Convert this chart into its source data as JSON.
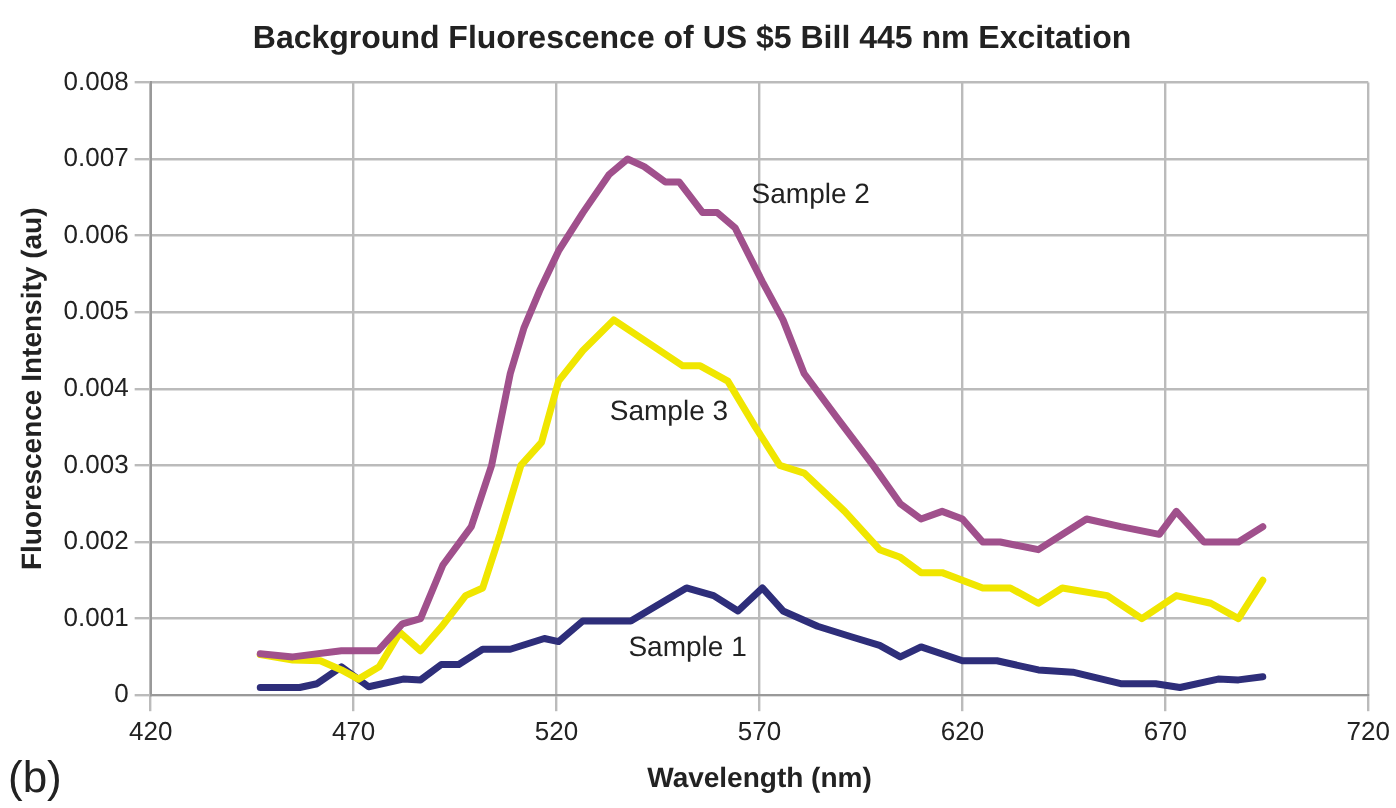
{
  "chart_data": {
    "type": "line",
    "title": "Background Fluorescence of US $5 Bill 445 nm Excitation",
    "xlabel": "Wavelength (nm)",
    "ylabel": "Fluorescence Intensity (au)",
    "annotations": [
      "(b)"
    ],
    "xlim": [
      420,
      720
    ],
    "xticks": [
      420,
      470,
      520,
      570,
      620,
      670,
      720
    ],
    "ylim": [
      0,
      0.008
    ],
    "yticks": [
      0,
      0.001,
      0.002,
      0.003,
      0.004,
      0.005,
      0.006,
      0.007,
      0.008
    ],
    "grid": true,
    "legend": false,
    "marker": "none",
    "line_style": "solid",
    "series": [
      {
        "name": "Sample 2",
        "color": "#a0508c",
        "x": [
          447,
          455,
          467,
          476,
          482,
          486.5,
          492,
          499,
          504,
          508.6,
          512,
          516,
          520.5,
          526.5,
          533,
          537.5,
          541.6,
          546.8,
          550.2,
          556,
          559.6,
          564,
          570.7,
          575.8,
          581,
          589.4,
          598,
          604.7,
          609.8,
          615,
          620,
          625,
          629.3,
          638.7,
          650.6,
          659,
          668.5,
          672.7,
          679.5,
          688,
          694
        ],
        "values": [
          0.00054,
          0.0005,
          0.00058,
          0.00058,
          0.00093,
          0.001,
          0.0017,
          0.0022,
          0.003,
          0.0042,
          0.0048,
          0.0053,
          0.0058,
          0.0063,
          0.0068,
          0.007,
          0.0069,
          0.0067,
          0.0067,
          0.0063,
          0.0063,
          0.0061,
          0.0054,
          0.0049,
          0.0042,
          0.0036,
          0.003,
          0.0025,
          0.0023,
          0.0024,
          0.0023,
          0.002,
          0.002,
          0.0019,
          0.0023,
          0.0022,
          0.0021,
          0.0024,
          0.002,
          0.002,
          0.0022
        ]
      },
      {
        "name": "Sample 3",
        "color": "#f0e600",
        "x": [
          447,
          455,
          461.8,
          467,
          471.2,
          476.3,
          481.4,
          486.5,
          491.6,
          497.6,
          501.8,
          506.1,
          511.2,
          516.3,
          520.5,
          526.5,
          534.1,
          542.6,
          551.1,
          555.4,
          562.2,
          569,
          575,
          581,
          591,
          599.6,
          604.7,
          609.8,
          615,
          625,
          631.8,
          638.7,
          644.6,
          655.7,
          664.2,
          672.7,
          681.2,
          688,
          694
        ],
        "values": [
          0.00053,
          0.00046,
          0.00045,
          0.00033,
          0.00021,
          0.00037,
          0.00082,
          0.00058,
          0.00089,
          0.0013,
          0.0014,
          0.0021,
          0.003,
          0.0033,
          0.0041,
          0.0045,
          0.0049,
          0.0046,
          0.0043,
          0.0043,
          0.0041,
          0.0035,
          0.003,
          0.0029,
          0.0024,
          0.0019,
          0.0018,
          0.0016,
          0.0016,
          0.0014,
          0.0014,
          0.0012,
          0.0014,
          0.0013,
          0.001,
          0.0013,
          0.0012,
          0.001,
          0.0015
        ]
      },
      {
        "name": "Sample 1",
        "color": "#2e2e7a",
        "x": [
          447,
          456.7,
          461,
          467,
          473.7,
          482.2,
          486.5,
          491.6,
          495.9,
          501.8,
          508.6,
          517,
          520.5,
          526.5,
          538.3,
          552,
          558.7,
          564.7,
          570.7,
          575.8,
          584.3,
          592.8,
          599.6,
          604.7,
          609.8,
          620,
          628.5,
          638.7,
          647.2,
          659,
          667.6,
          673.6,
          683,
          688,
          694
        ],
        "values": [
          0.0001,
          0.0001,
          0.00015,
          0.00037,
          0.00011,
          0.00021,
          0.0002,
          0.0004,
          0.0004,
          0.0006,
          0.0006,
          0.00074,
          0.0007,
          0.00097,
          0.00097,
          0.0014,
          0.0013,
          0.0011,
          0.0014,
          0.0011,
          0.0009,
          0.00076,
          0.00065,
          0.0005,
          0.00063,
          0.00045,
          0.00045,
          0.00033,
          0.0003,
          0.00015,
          0.00015,
          0.0001,
          0.00021,
          0.0002,
          0.00024
        ]
      }
    ]
  }
}
